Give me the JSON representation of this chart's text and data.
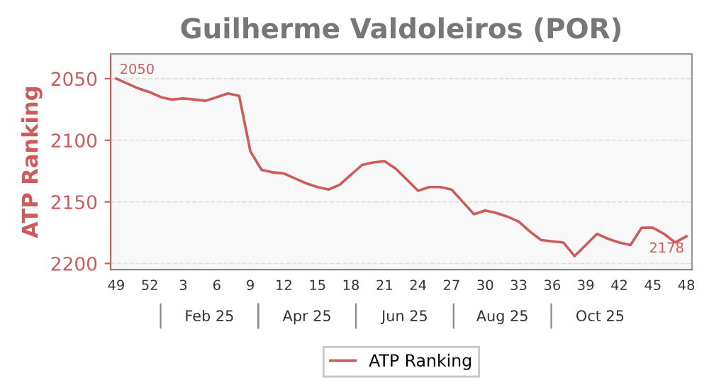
{
  "chart_data": {
    "type": "line",
    "title": "Guilherme Valdoleiros (POR)",
    "ylabel": "ATP Ranking",
    "categories": [
      "49",
      null,
      null,
      "52",
      null,
      null,
      "3",
      null,
      null,
      "6",
      null,
      null,
      "9",
      null,
      null,
      "12",
      null,
      null,
      "15",
      null,
      null,
      "18",
      null,
      null,
      "21",
      null,
      null,
      "24",
      null,
      null,
      "27",
      null,
      null,
      "30",
      null,
      null,
      "33",
      null,
      null,
      "36",
      null,
      null,
      "39",
      null,
      null,
      "42",
      null,
      null,
      "45",
      null,
      null,
      "48"
    ],
    "series": [
      {
        "name": "ATP Ranking",
        "color": "#cc5c5c",
        "values": [
          2050,
          2054,
          2058,
          2061,
          2065,
          2067,
          2066,
          2067,
          2068,
          2065,
          2062,
          2064,
          2109,
          2124,
          2126,
          2127,
          2131,
          2135,
          2138,
          2140,
          2136,
          2128,
          2120,
          2118,
          2117,
          2123,
          2132,
          2141,
          2138,
          2138,
          2140,
          2150,
          2160,
          2157,
          2159,
          2162,
          2166,
          2174,
          2181,
          2182,
          2183,
          2194,
          2185,
          2176,
          2180,
          2183,
          2185,
          2171,
          2171,
          2176,
          2183,
          2178
        ],
        "value_labels": [
          "2050",
          null,
          null,
          null,
          null,
          null,
          null,
          null,
          null,
          null,
          null,
          null,
          null,
          null,
          null,
          null,
          null,
          null,
          null,
          null,
          null,
          null,
          null,
          null,
          null,
          null,
          null,
          null,
          null,
          null,
          null,
          null,
          null,
          null,
          null,
          null,
          null,
          null,
          null,
          null,
          null,
          null,
          null,
          null,
          null,
          null,
          null,
          null,
          null,
          null,
          null,
          "2178"
        ]
      }
    ],
    "annotations": [
      "Feb 25",
      "Apr 25",
      "Jun 25",
      "Aug 25",
      "Oct 25"
    ],
    "ylim": [
      2205,
      2030
    ],
    "yticks": [
      2050,
      2100,
      2150,
      2200
    ],
    "grid": "y",
    "legend": "bottom",
    "marker": "none",
    "line_style": "solid"
  }
}
